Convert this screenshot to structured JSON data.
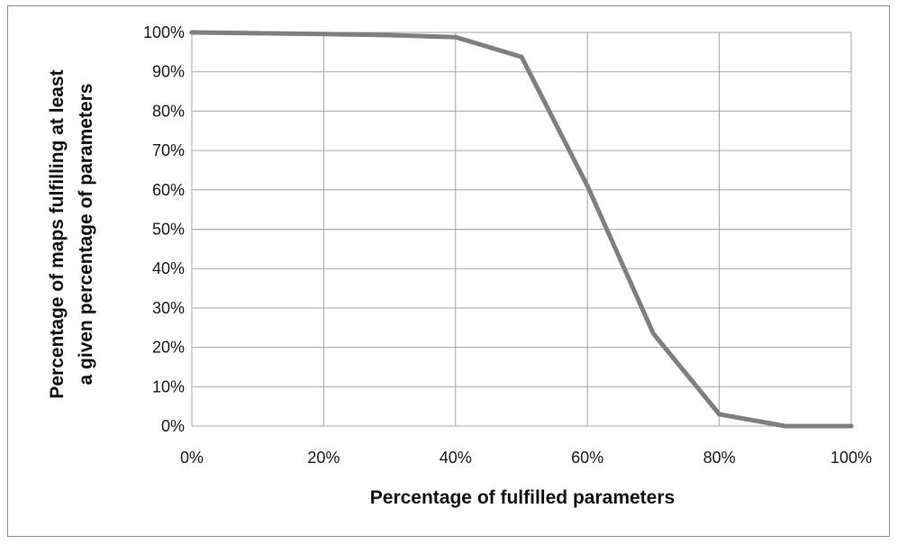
{
  "chart_data": {
    "type": "line",
    "title": "",
    "xlabel": "Percentage of fulfilled parameters",
    "ylabel_lines": [
      "Percentage of maps fulfilling at least",
      "a  given percentage of parameters"
    ],
    "x": [
      0,
      10,
      20,
      30,
      40,
      50,
      60,
      70,
      80,
      90,
      100
    ],
    "series": [
      {
        "values": [
          100,
          99.8,
          99.6,
          99.3,
          98.8,
          93.8,
          61,
          23.5,
          3,
          0,
          0
        ],
        "color": "#7f7f7f"
      }
    ],
    "xlim": [
      0,
      100
    ],
    "ylim": [
      0,
      100
    ],
    "x_ticks": [
      0,
      20,
      40,
      60,
      80,
      100
    ],
    "x_tick_labels": [
      "0%",
      "20%",
      "40%",
      "60%",
      "80%",
      "100%"
    ],
    "y_ticks": [
      0,
      10,
      20,
      30,
      40,
      50,
      60,
      70,
      80,
      90,
      100
    ],
    "y_tick_labels": [
      "0%",
      "10%",
      "20%",
      "30%",
      "40%",
      "50%",
      "60%",
      "70%",
      "80%",
      "90%",
      "100%"
    ],
    "grid": true,
    "legend": "none",
    "gridline_color": "#a6a6a6"
  }
}
